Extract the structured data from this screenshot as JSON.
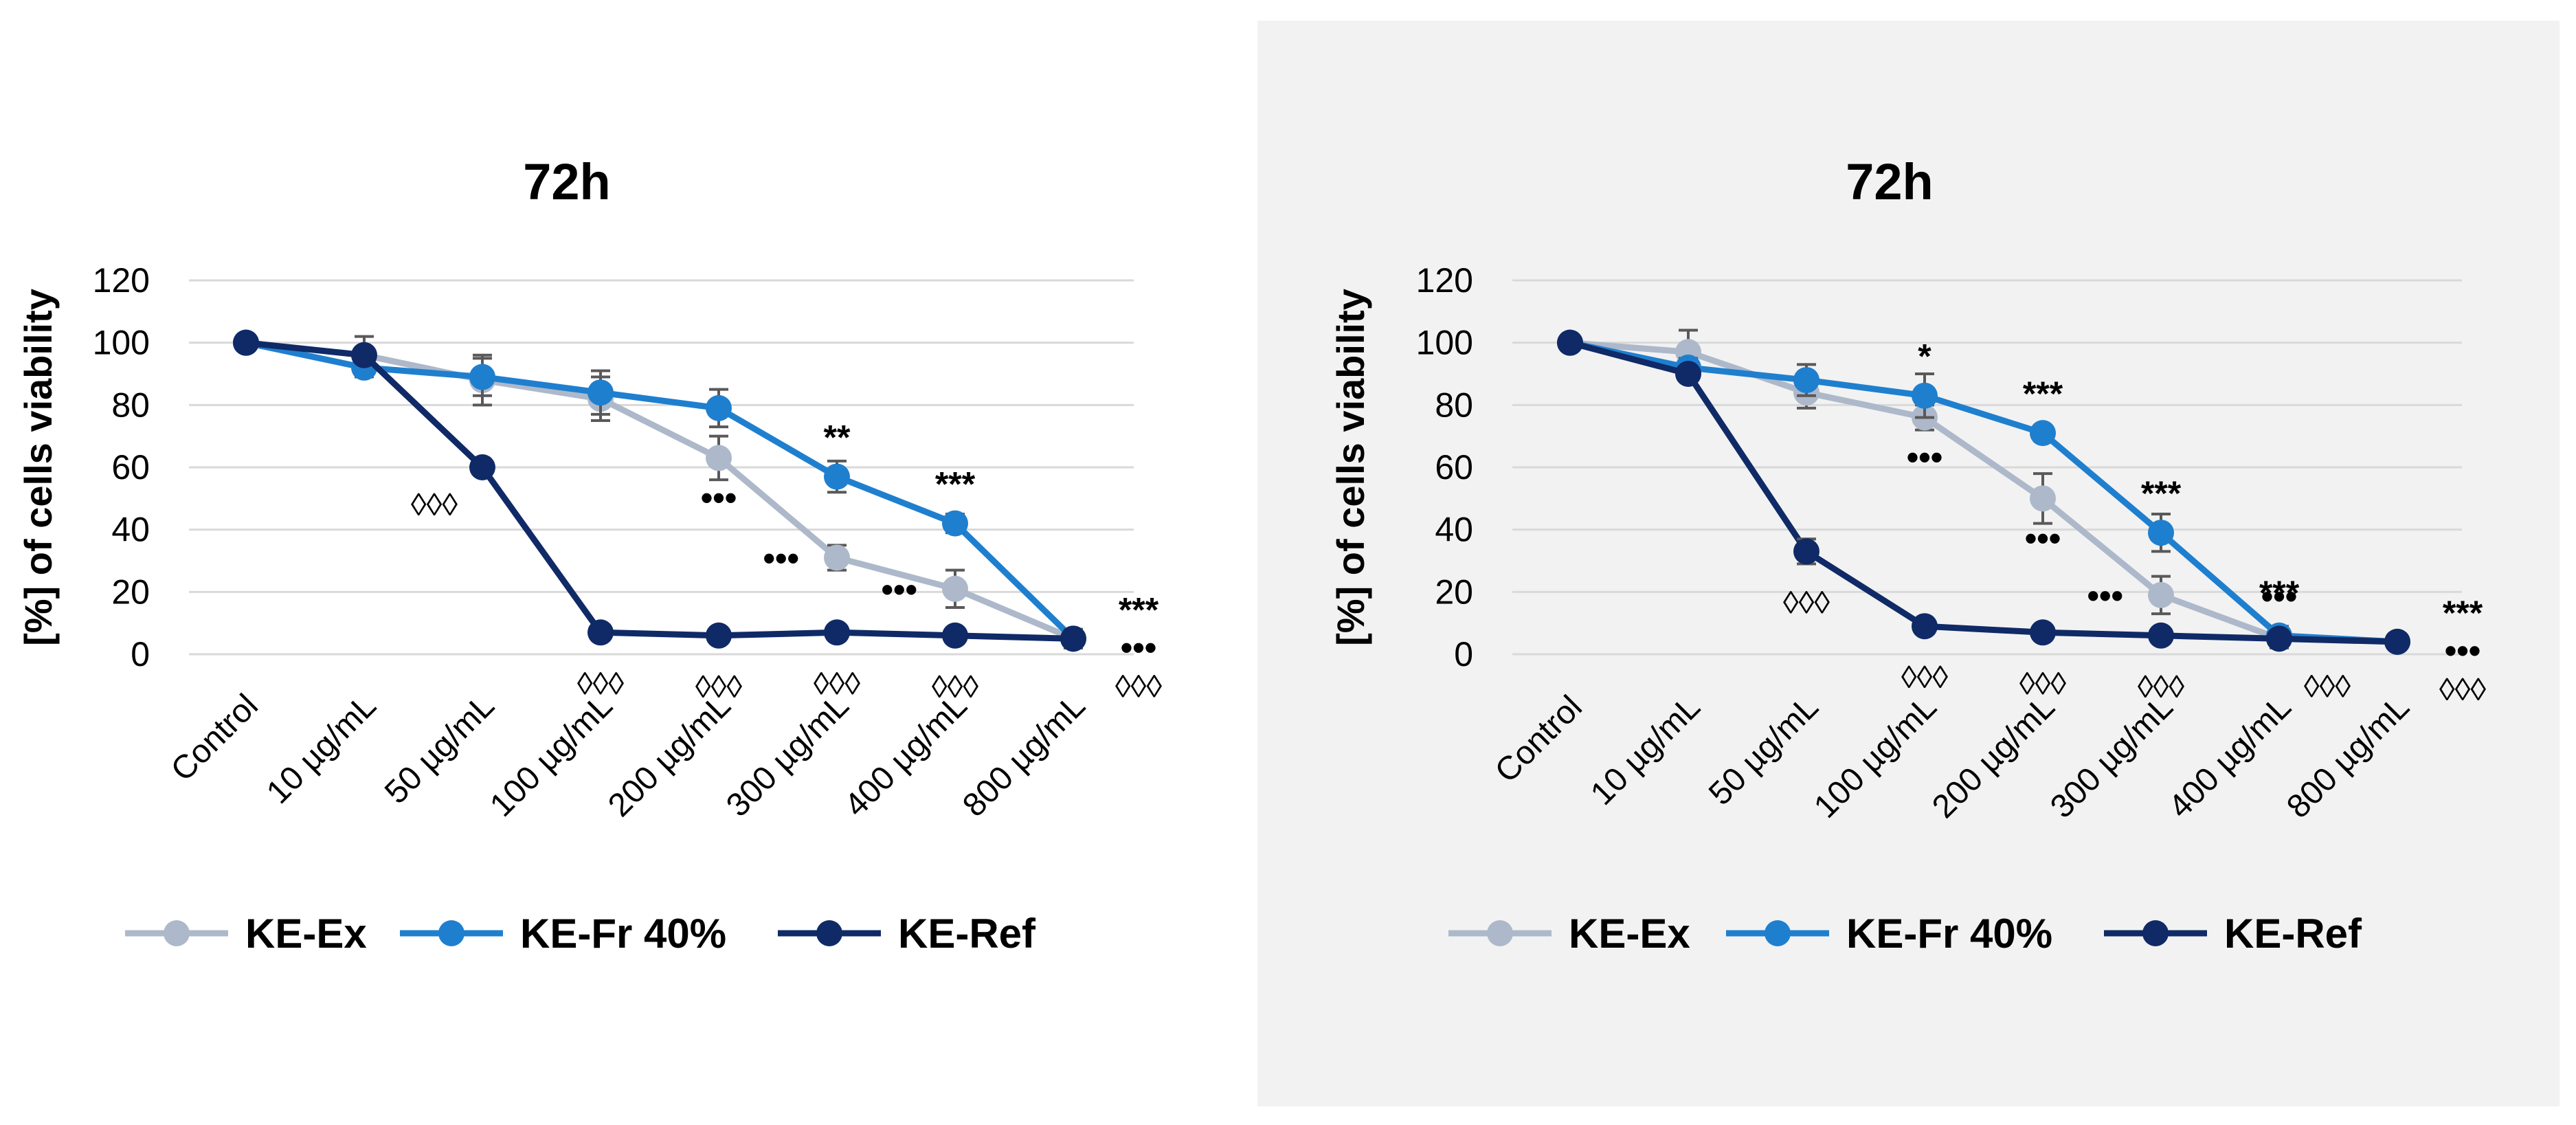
{
  "colors": {
    "ke_ex": "#adb9ca",
    "ke_fr": "#1f7fcf",
    "ke_ref": "#0f2a66",
    "grid": "#d9d9d9",
    "errbar": "#595959"
  },
  "chart_data": [
    {
      "type": "line",
      "title": "72h",
      "ylabel": "[%] of cells viability",
      "xlabel": "",
      "ylim": [
        0,
        120
      ],
      "yticks": [
        "0",
        "20",
        "40",
        "60",
        "80",
        "100",
        "120"
      ],
      "categories": [
        "Control",
        "10 µg/mL",
        "50 µg/mL",
        "100 µg/mL",
        "200 µg/mL",
        "300 µg/mL",
        "400 µg/mL",
        "800 µg/mL"
      ],
      "grid": true,
      "legend_position": "bottom",
      "series": [
        {
          "name": "KE-Ex",
          "values": [
            100,
            96,
            88,
            82,
            63,
            31,
            21,
            5
          ],
          "errors": [
            0,
            6,
            8,
            7,
            7,
            4,
            6,
            3
          ]
        },
        {
          "name": "KE-Fr 40%",
          "values": [
            100,
            92,
            89,
            84,
            79,
            57,
            42,
            5
          ],
          "errors": [
            0,
            3,
            6,
            7,
            6,
            5,
            3,
            3
          ]
        },
        {
          "name": "KE-Ref",
          "values": [
            100,
            96,
            60,
            7,
            6,
            7,
            6,
            5
          ],
          "errors": [
            0,
            2,
            2,
            1,
            1,
            1,
            1,
            1
          ]
        }
      ],
      "annotations": [
        {
          "text": "◊◊◊",
          "x": 2,
          "y": 60,
          "pos": "below-left"
        },
        {
          "text": "◊◊◊",
          "x": 3,
          "y": 7,
          "pos": "below"
        },
        {
          "text": "◊◊◊",
          "x": 4,
          "y": 6,
          "pos": "below"
        },
        {
          "text": "◊◊◊",
          "x": 5,
          "y": 7,
          "pos": "below"
        },
        {
          "text": "◊◊◊",
          "x": 6,
          "y": 6,
          "pos": "below"
        },
        {
          "text": "•••",
          "x": 4,
          "y": 63,
          "pos": "below"
        },
        {
          "text": "•••",
          "x": 5,
          "y": 31,
          "pos": "left"
        },
        {
          "text": "•••",
          "x": 6,
          "y": 21,
          "pos": "left"
        },
        {
          "text": "**",
          "x": 5,
          "y": 57,
          "pos": "above"
        },
        {
          "text": "***",
          "x": 6,
          "y": 42,
          "pos": "above"
        },
        {
          "text": "***",
          "x": 7,
          "y": 5,
          "pos": "right-stack-1"
        },
        {
          "text": "•••",
          "x": 7,
          "y": 5,
          "pos": "right-stack-2"
        },
        {
          "text": "◊◊◊",
          "x": 7,
          "y": 5,
          "pos": "right-stack-3"
        }
      ]
    },
    {
      "type": "line",
      "title": "72h",
      "ylabel": "[%] of cells viability",
      "xlabel": "",
      "ylim": [
        0,
        120
      ],
      "yticks": [
        "0",
        "20",
        "40",
        "60",
        "80",
        "100",
        "120"
      ],
      "categories": [
        "Control",
        "10 µg/mL",
        "50 µg/mL",
        "100 µg/mL",
        "200 µg/mL",
        "300 µg/mL",
        "400 µg/mL",
        "800 µg/mL"
      ],
      "grid": true,
      "legend_position": "bottom",
      "series": [
        {
          "name": "KE-Ex",
          "values": [
            100,
            97,
            84,
            76,
            50,
            19,
            5,
            4
          ],
          "errors": [
            0,
            7,
            5,
            4,
            8,
            6,
            3,
            1
          ]
        },
        {
          "name": "KE-Fr 40%",
          "values": [
            100,
            92,
            88,
            83,
            71,
            39,
            6,
            4
          ],
          "errors": [
            0,
            3,
            5,
            7,
            2,
            6,
            3,
            1
          ]
        },
        {
          "name": "KE-Ref",
          "values": [
            100,
            90,
            33,
            9,
            7,
            6,
            5,
            4
          ],
          "errors": [
            0,
            2,
            4,
            1,
            1,
            1,
            1,
            1
          ]
        }
      ],
      "annotations": [
        {
          "text": "◊◊◊",
          "x": 2,
          "y": 33,
          "pos": "below"
        },
        {
          "text": "◊◊◊",
          "x": 3,
          "y": 9,
          "pos": "below"
        },
        {
          "text": "◊◊◊",
          "x": 4,
          "y": 7,
          "pos": "below"
        },
        {
          "text": "◊◊◊",
          "x": 5,
          "y": 6,
          "pos": "below"
        },
        {
          "text": "◊◊◊",
          "x": 6,
          "y": 5,
          "pos": "below-right"
        },
        {
          "text": "•••",
          "x": 3,
          "y": 76,
          "pos": "below"
        },
        {
          "text": "•••",
          "x": 4,
          "y": 50,
          "pos": "below"
        },
        {
          "text": "•••",
          "x": 5,
          "y": 19,
          "pos": "left"
        },
        {
          "text": "•••",
          "x": 6,
          "y": 6,
          "pos": "above"
        },
        {
          "text": "*",
          "x": 3,
          "y": 83,
          "pos": "above"
        },
        {
          "text": "***",
          "x": 4,
          "y": 71,
          "pos": "above"
        },
        {
          "text": "***",
          "x": 5,
          "y": 39,
          "pos": "above"
        },
        {
          "text": "***",
          "x": 6,
          "y": 6,
          "pos": "above-high"
        },
        {
          "text": "***",
          "x": 7,
          "y": 4,
          "pos": "right-stack-1"
        },
        {
          "text": "•••",
          "x": 7,
          "y": 4,
          "pos": "right-stack-2"
        },
        {
          "text": "◊◊◊",
          "x": 7,
          "y": 4,
          "pos": "right-stack-3"
        }
      ]
    }
  ]
}
